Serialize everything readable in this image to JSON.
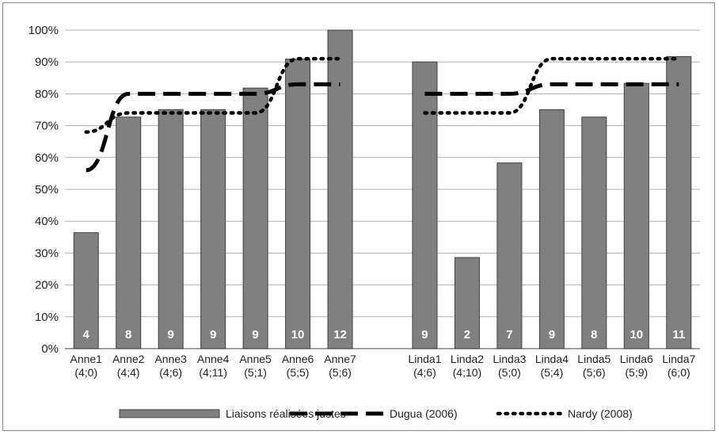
{
  "chart_data": {
    "type": "bar",
    "categories": [
      "Anne1",
      "Anne2",
      "Anne3",
      "Anne4",
      "Anne5",
      "Anne6",
      "Anne7",
      "Linda1",
      "Linda2",
      "Linda3",
      "Linda4",
      "Linda5",
      "Linda6",
      "Linda7"
    ],
    "category_sublabels": [
      "(4;0)",
      "(4;4)",
      "(4;6)",
      "(4;11)",
      "(5;1)",
      "(5;5)",
      "(5;6)",
      "(4;6)",
      "(4;10)",
      "(5;0)",
      "(5;4)",
      "(5;6)",
      "(5;9)",
      "(6;0)"
    ],
    "groups": [
      {
        "categories": [
          "Anne1",
          "Anne2",
          "Anne3",
          "Anne4",
          "Anne5",
          "Anne6",
          "Anne7"
        ]
      },
      {
        "categories": [
          "Linda1",
          "Linda2",
          "Linda3",
          "Linda4",
          "Linda5",
          "Linda6",
          "Linda7"
        ]
      }
    ],
    "series": [
      {
        "name": "Liaisons réalisées justes",
        "type": "bar",
        "color": "#808080",
        "values": [
          36.4,
          72.7,
          75,
          75,
          81.8,
          90.9,
          100,
          90,
          28.6,
          58.3,
          75,
          72.7,
          83.3,
          91.7
        ],
        "data_labels": [
          "4",
          "8",
          "9",
          "9",
          "9",
          "10",
          "12",
          "9",
          "2",
          "7",
          "9",
          "8",
          "10",
          "11"
        ]
      },
      {
        "name": "Dugua (2006)",
        "type": "line",
        "style": "dashed",
        "color": "#000000",
        "values": [
          56,
          80,
          80,
          80,
          80,
          83,
          83,
          80,
          80,
          80,
          83,
          83,
          83,
          83
        ]
      },
      {
        "name": "Nardy (2008)",
        "type": "line",
        "style": "dotted",
        "color": "#000000",
        "values": [
          68,
          74,
          74,
          74,
          74,
          91,
          91,
          74,
          74,
          74,
          91,
          91,
          91,
          91
        ]
      }
    ],
    "ylim": [
      0,
      100
    ],
    "yticks": [
      "0%",
      "10%",
      "20%",
      "30%",
      "40%",
      "50%",
      "60%",
      "70%",
      "80%",
      "90%",
      "100%"
    ],
    "grid": true,
    "legend_position": "bottom"
  }
}
